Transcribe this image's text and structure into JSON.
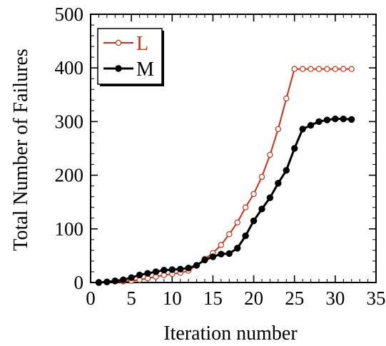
{
  "chart_data": {
    "type": "line",
    "title": "",
    "xlabel": "Iteration number",
    "ylabel": "Total Number of Failures",
    "xlim": [
      0,
      35
    ],
    "ylim": [
      0,
      500
    ],
    "x_ticks": [
      0,
      5,
      10,
      15,
      20,
      25,
      30,
      35
    ],
    "y_ticks": [
      0,
      100,
      200,
      300,
      400,
      500
    ],
    "grid": false,
    "legend_position": "top-left",
    "series": [
      {
        "name": "L",
        "color": "#d42e12",
        "marker": "open-circle",
        "x": [
          1,
          2,
          3,
          4,
          5,
          6,
          7,
          8,
          9,
          10,
          11,
          12,
          13,
          14,
          15,
          16,
          17,
          18,
          19,
          20,
          21,
          22,
          23,
          24,
          25,
          26,
          27,
          28,
          29,
          30,
          31,
          32
        ],
        "y": [
          1,
          1,
          2,
          2,
          3,
          5,
          8,
          11,
          14,
          16,
          18,
          22,
          32,
          44,
          55,
          70,
          90,
          112,
          140,
          165,
          197,
          238,
          286,
          343,
          398,
          398,
          398,
          398,
          398,
          398,
          398,
          398
        ]
      },
      {
        "name": "M",
        "color": "#000000",
        "marker": "filled-circle",
        "x": [
          1,
          2,
          3,
          4,
          5,
          6,
          7,
          8,
          9,
          10,
          11,
          12,
          13,
          14,
          15,
          16,
          17,
          18,
          19,
          20,
          21,
          22,
          23,
          24,
          25,
          26,
          27,
          28,
          29,
          30,
          31,
          32
        ],
        "y": [
          0,
          1,
          3,
          5,
          9,
          14,
          17,
          20,
          23,
          24,
          25,
          27,
          32,
          42,
          48,
          53,
          54,
          64,
          87,
          115,
          137,
          158,
          185,
          209,
          250,
          286,
          293,
          300,
          303,
          305,
          305,
          304
        ]
      }
    ]
  }
}
